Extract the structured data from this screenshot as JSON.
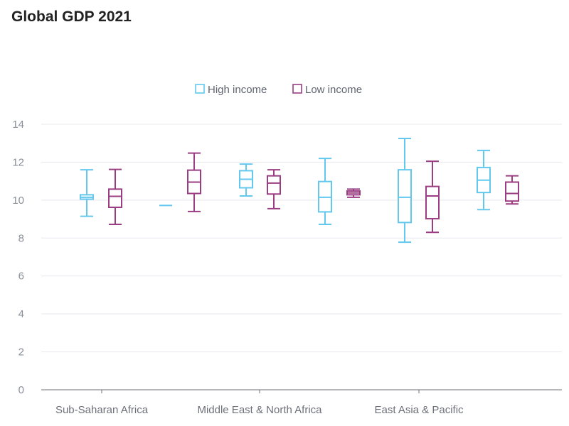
{
  "chart_data": {
    "type": "boxplot",
    "title": "Global GDP 2021",
    "categories": [
      "Sub-Saharan Africa",
      "Middle East & North Africa",
      "East Asia & Pacific"
    ],
    "xlabel": "",
    "ylabel": "",
    "ylim": [
      0,
      14
    ],
    "yticks": [
      0,
      2,
      4,
      6,
      8,
      10,
      12,
      14
    ],
    "grid": true,
    "legend_position": "top-center",
    "series": [
      {
        "name": "High income",
        "color": "#62c8ee",
        "boxes": [
          {
            "group": 0,
            "min": 9.15,
            "q1": 10.05,
            "median": 10.15,
            "q3": 10.28,
            "max": 11.6
          },
          {
            "group": 0,
            "min": 9.72,
            "q1": 9.72,
            "median": 9.72,
            "q3": 9.72,
            "max": 9.72
          },
          {
            "group": 1,
            "min": 10.22,
            "q1": 10.65,
            "median": 11.1,
            "q3": 11.55,
            "max": 11.9
          },
          {
            "group": 1,
            "min": 8.72,
            "q1": 9.38,
            "median": 10.15,
            "q3": 10.98,
            "max": 12.2
          },
          {
            "group": 2,
            "min": 7.78,
            "q1": 8.82,
            "median": 10.15,
            "q3": 11.6,
            "max": 13.25
          },
          {
            "group": 2,
            "min": 9.5,
            "q1": 10.4,
            "median": 11.05,
            "q3": 11.72,
            "max": 12.62
          }
        ]
      },
      {
        "name": "Low income",
        "color": "#9b3d83",
        "boxes": [
          {
            "group": 0,
            "min": 8.72,
            "q1": 9.62,
            "median": 10.2,
            "q3": 10.58,
            "max": 11.62
          },
          {
            "group": 0,
            "min": 9.4,
            "q1": 10.35,
            "median": 10.95,
            "q3": 11.58,
            "max": 12.48
          },
          {
            "group": 1,
            "min": 9.55,
            "q1": 10.32,
            "median": 10.9,
            "q3": 11.28,
            "max": 11.6
          },
          {
            "group": 1,
            "min": 10.15,
            "q1": 10.28,
            "median": 10.38,
            "q3": 10.48,
            "max": 10.58
          },
          {
            "group": 2,
            "min": 8.3,
            "q1": 9.02,
            "median": 10.22,
            "q3": 10.72,
            "max": 12.05
          },
          {
            "group": 2,
            "min": 9.8,
            "q1": 9.95,
            "median": 10.35,
            "q3": 10.95,
            "max": 11.28
          }
        ]
      }
    ]
  }
}
